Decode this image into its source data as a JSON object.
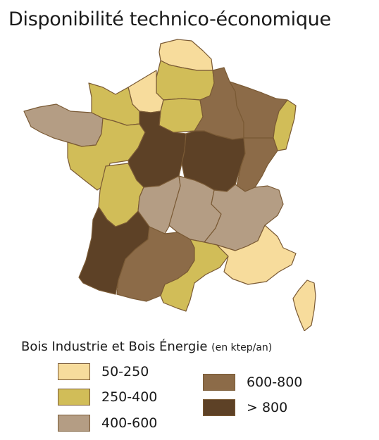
{
  "title": "Disponibilité technico-économique",
  "legend": {
    "title": "Bois Industrie et Bois Énergie",
    "unit": "(en ktep/an)",
    "classes": [
      {
        "label": "50-250",
        "color": "#f7dc9c"
      },
      {
        "label": "250-400",
        "color": "#d1bd58"
      },
      {
        "label": "400-600",
        "color": "#b49d84"
      },
      {
        "label": "600-800",
        "color": "#8c6b48"
      },
      {
        "label": "> 800",
        "color": "#5d4126"
      }
    ]
  },
  "regions": [
    {
      "name": "Nord-Pas-de-Calais",
      "class": "50-250"
    },
    {
      "name": "Picardie",
      "class": "250-400"
    },
    {
      "name": "Haute-Normandie",
      "class": "50-250"
    },
    {
      "name": "Basse-Normandie",
      "class": "250-400"
    },
    {
      "name": "Île-de-France",
      "class": "250-400"
    },
    {
      "name": "Champagne-Ardenne",
      "class": "600-800"
    },
    {
      "name": "Lorraine",
      "class": "600-800"
    },
    {
      "name": "Alsace",
      "class": "250-400"
    },
    {
      "name": "Bretagne",
      "class": "400-600"
    },
    {
      "name": "Pays de la Loire",
      "class": "250-400"
    },
    {
      "name": "Centre",
      "class": "> 800"
    },
    {
      "name": "Bourgogne",
      "class": "> 800"
    },
    {
      "name": "Franche-Comté",
      "class": "600-800"
    },
    {
      "name": "Poitou-Charentes",
      "class": "250-400"
    },
    {
      "name": "Limousin",
      "class": "400-600"
    },
    {
      "name": "Auvergne",
      "class": "400-600"
    },
    {
      "name": "Rhône-Alpes",
      "class": "400-600"
    },
    {
      "name": "Aquitaine",
      "class": "> 800"
    },
    {
      "name": "Midi-Pyrénées",
      "class": "600-800"
    },
    {
      "name": "Languedoc-Roussillon",
      "class": "250-400"
    },
    {
      "name": "Provence-Alpes-Côte d'Azur",
      "class": "50-250"
    },
    {
      "name": "Corse",
      "class": "50-250"
    }
  ]
}
